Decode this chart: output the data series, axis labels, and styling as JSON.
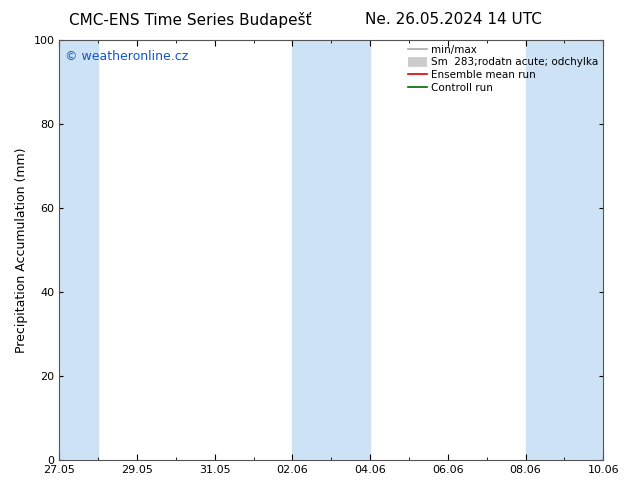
{
  "title_left": "CMC-ENS Time Series Budapešť",
  "title_right": "Ne. 26.05.2024 14 UTC",
  "ylabel": "Precipitation Accumulation (mm)",
  "watermark": "© weatheronline.cz",
  "watermark_color": "#1155cc",
  "bg_color": "#ffffff",
  "plot_bg_color": "#ffffff",
  "ylim": [
    0,
    100
  ],
  "yticks": [
    0,
    20,
    40,
    60,
    80,
    100
  ],
  "x_major_labels": [
    "27.05",
    "29.05",
    "31.05",
    "02.06",
    "04.06",
    "06.06",
    "08.06",
    "10.06"
  ],
  "x_major_days": [
    0,
    2,
    4,
    6,
    8,
    10,
    12,
    14
  ],
  "shade_color": "#cde3f5",
  "shaded_day_ranges": [
    [
      0,
      1
    ],
    [
      6,
      8
    ],
    [
      12,
      14
    ]
  ],
  "legend_entries": [
    {
      "label": "min/max",
      "color": "#aaaaaa",
      "lw": 1.2,
      "type": "line"
    },
    {
      "label": "Sm  283;rodatn acute; odchylka",
      "color": "#cccccc",
      "lw": 7,
      "type": "band"
    },
    {
      "label": "Ensemble mean run",
      "color": "#dd0000",
      "lw": 1.2,
      "type": "line"
    },
    {
      "label": "Controll run",
      "color": "#006600",
      "lw": 1.2,
      "type": "line"
    }
  ],
  "title_fontsize": 11,
  "axis_fontsize": 9,
  "tick_fontsize": 8,
  "watermark_fontsize": 9,
  "legend_fontsize": 7.5
}
